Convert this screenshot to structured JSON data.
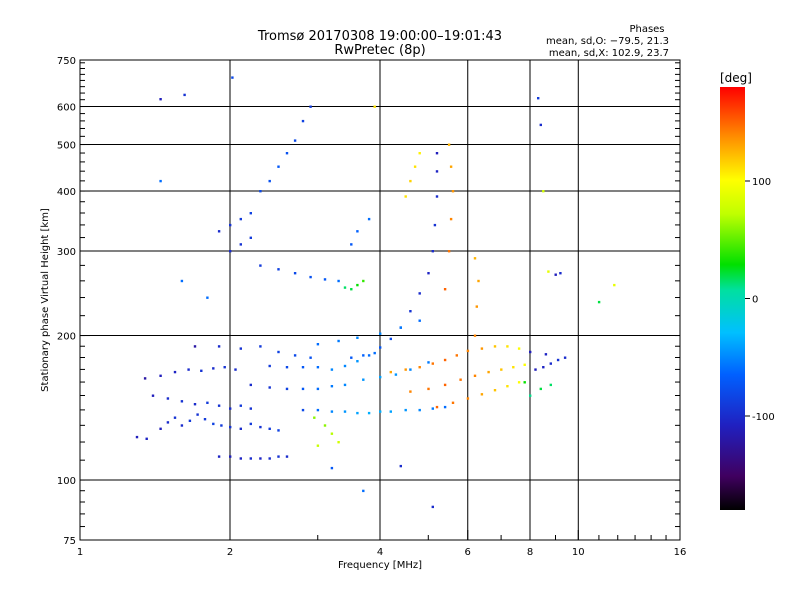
{
  "chart_data": {
    "type": "scatter",
    "title": "Tromsø 20170308 19:00:00–19:01:43",
    "subtitle": "RwPretec (8p)",
    "xlabel": "Frequency [MHz]",
    "ylabel": "Stationary phase Virtual Height [km]",
    "x_scale": "log",
    "y_scale": "log",
    "xlim": [
      1,
      16
    ],
    "ylim": [
      75,
      750
    ],
    "x_ticks": [
      1,
      2,
      4,
      6,
      8,
      10,
      16
    ],
    "y_ticks": [
      75,
      100,
      200,
      300,
      400,
      500,
      600,
      750
    ],
    "x_grid": [
      2,
      4,
      6,
      8,
      10
    ],
    "y_grid": [
      100,
      200,
      300,
      400,
      500,
      600
    ],
    "grid": true,
    "stats": {
      "heading": "Phases",
      "line_o": "mean, sd,O: −79.5, 21.3",
      "line_x": "mean, sd,X: 102.9, 23.7"
    },
    "colorbar": {
      "unit": "[deg]",
      "range": [
        -180,
        180
      ],
      "ticks": [
        100,
        0,
        -100
      ],
      "colormap": "rainbow"
    },
    "series": [
      {
        "values": [
          [
            1.3,
            123,
            -110
          ],
          [
            1.36,
            122,
            -105
          ],
          [
            1.45,
            128,
            -110
          ],
          [
            1.5,
            132,
            -100
          ],
          [
            1.55,
            135,
            -95
          ],
          [
            1.6,
            130,
            -100
          ],
          [
            1.66,
            133,
            -90
          ],
          [
            1.72,
            137,
            -95
          ],
          [
            1.78,
            134,
            -90
          ],
          [
            1.85,
            131,
            -85
          ],
          [
            1.92,
            130,
            -90
          ],
          [
            2.0,
            129,
            -95
          ],
          [
            2.1,
            128,
            -100
          ],
          [
            2.2,
            131,
            -90
          ],
          [
            2.3,
            129,
            -95
          ],
          [
            2.4,
            128,
            -90
          ],
          [
            2.5,
            127,
            -85
          ],
          [
            1.4,
            150,
            -110
          ],
          [
            1.5,
            148,
            -100
          ],
          [
            1.6,
            146,
            -95
          ],
          [
            1.7,
            144,
            -100
          ],
          [
            1.8,
            145,
            -90
          ],
          [
            1.9,
            143,
            -95
          ],
          [
            2.0,
            141,
            -100
          ],
          [
            2.1,
            143,
            -90
          ],
          [
            2.2,
            141,
            -95
          ],
          [
            1.35,
            163,
            -120
          ],
          [
            1.45,
            165,
            -110
          ],
          [
            1.55,
            168,
            -105
          ],
          [
            1.65,
            170,
            -100
          ],
          [
            1.75,
            169,
            -95
          ],
          [
            1.85,
            171,
            -100
          ],
          [
            1.95,
            172,
            -95
          ],
          [
            2.05,
            170,
            -100
          ],
          [
            1.9,
            112,
            -105
          ],
          [
            2.0,
            112,
            -110
          ],
          [
            2.1,
            111,
            -105
          ],
          [
            2.2,
            111,
            -100
          ],
          [
            2.3,
            111,
            -105
          ],
          [
            2.4,
            111,
            -100
          ],
          [
            2.5,
            112,
            -95
          ],
          [
            2.6,
            112,
            -100
          ],
          [
            1.7,
            190,
            -120
          ],
          [
            1.9,
            190,
            -100
          ],
          [
            2.1,
            188,
            -95
          ],
          [
            2.3,
            190,
            -90
          ],
          [
            2.5,
            185,
            -85
          ],
          [
            2.7,
            182,
            -80
          ],
          [
            2.9,
            180,
            -75
          ],
          [
            2.4,
            173,
            -90
          ],
          [
            2.6,
            172,
            -80
          ],
          [
            2.8,
            172,
            -70
          ],
          [
            3.0,
            172,
            -60
          ],
          [
            3.2,
            170,
            -50
          ],
          [
            3.4,
            173,
            -50
          ],
          [
            3.6,
            177,
            -45
          ],
          [
            3.8,
            182,
            -60
          ],
          [
            4.0,
            189,
            -70
          ],
          [
            4.2,
            197,
            -80
          ],
          [
            4.4,
            208,
            -90
          ],
          [
            4.6,
            225,
            -95
          ],
          [
            4.8,
            245,
            -100
          ],
          [
            5.0,
            270,
            -105
          ],
          [
            5.1,
            300,
            -100
          ],
          [
            5.15,
            340,
            -95
          ],
          [
            5.2,
            390,
            -100
          ],
          [
            5.2,
            440,
            -105
          ],
          [
            5.2,
            480,
            -110
          ],
          [
            2.2,
            158,
            -100
          ],
          [
            2.4,
            156,
            -95
          ],
          [
            2.6,
            155,
            -85
          ],
          [
            2.8,
            155,
            -70
          ],
          [
            3.0,
            155,
            -60
          ],
          [
            3.2,
            157,
            -55
          ],
          [
            3.4,
            158,
            -50
          ],
          [
            3.7,
            162,
            -45
          ],
          [
            4.0,
            164,
            -40
          ],
          [
            4.3,
            166,
            -45
          ],
          [
            4.6,
            170,
            -50
          ],
          [
            5.0,
            176,
            -55
          ],
          [
            2.8,
            140,
            -80
          ],
          [
            3.0,
            140,
            -60
          ],
          [
            3.2,
            139,
            -50
          ],
          [
            3.4,
            139,
            -45
          ],
          [
            3.6,
            138,
            -40
          ],
          [
            3.8,
            138,
            -35
          ],
          [
            4.0,
            139,
            -35
          ],
          [
            4.2,
            139,
            -40
          ],
          [
            4.5,
            140,
            -45
          ],
          [
            4.8,
            140,
            -50
          ],
          [
            5.1,
            141,
            -55
          ],
          [
            5.4,
            142,
            -60
          ],
          [
            3.0,
            192,
            -60
          ],
          [
            3.3,
            195,
            -55
          ],
          [
            3.6,
            198,
            -50
          ],
          [
            4.0,
            202,
            -50
          ],
          [
            4.4,
            208,
            -55
          ],
          [
            4.8,
            215,
            -60
          ],
          [
            3.5,
            180,
            -70
          ],
          [
            3.7,
            182,
            -65
          ],
          [
            3.9,
            184,
            -60
          ],
          [
            4.2,
            168,
            130
          ],
          [
            4.5,
            170,
            135
          ],
          [
            4.8,
            172,
            140
          ],
          [
            5.1,
            175,
            145
          ],
          [
            5.4,
            178,
            150
          ],
          [
            5.7,
            182,
            145
          ],
          [
            6.0,
            186,
            140
          ],
          [
            6.4,
            188,
            135
          ],
          [
            6.8,
            190,
            120
          ],
          [
            7.2,
            190,
            110
          ],
          [
            7.6,
            188,
            100
          ],
          [
            4.6,
            153,
            140
          ],
          [
            5.0,
            155,
            145
          ],
          [
            5.4,
            158,
            150
          ],
          [
            5.8,
            162,
            145
          ],
          [
            6.2,
            165,
            140
          ],
          [
            6.6,
            168,
            130
          ],
          [
            7.0,
            170,
            120
          ],
          [
            7.4,
            172,
            110
          ],
          [
            7.8,
            174,
            100
          ],
          [
            5.2,
            142,
            150
          ],
          [
            5.6,
            145,
            145
          ],
          [
            6.0,
            148,
            140
          ],
          [
            6.4,
            151,
            130
          ],
          [
            6.8,
            154,
            120
          ],
          [
            7.2,
            157,
            110
          ],
          [
            7.6,
            160,
            100
          ],
          [
            5.4,
            250,
            150
          ],
          [
            5.5,
            300,
            145
          ],
          [
            5.55,
            350,
            140
          ],
          [
            5.6,
            400,
            135
          ],
          [
            5.55,
            450,
            130
          ],
          [
            5.5,
            500,
            125
          ],
          [
            6.2,
            200,
            140
          ],
          [
            6.25,
            230,
            135
          ],
          [
            6.3,
            260,
            130
          ],
          [
            6.2,
            290,
            125
          ],
          [
            3.1,
            130,
            60
          ],
          [
            3.2,
            125,
            70
          ],
          [
            3.3,
            120,
            80
          ],
          [
            3.0,
            118,
            75
          ],
          [
            2.95,
            135,
            60
          ],
          [
            4.5,
            390,
            110
          ],
          [
            4.6,
            420,
            115
          ],
          [
            4.7,
            450,
            110
          ],
          [
            4.8,
            480,
            105
          ],
          [
            3.5,
            250,
            20
          ],
          [
            3.6,
            255,
            30
          ],
          [
            3.7,
            260,
            40
          ],
          [
            3.4,
            252,
            15
          ],
          [
            8.2,
            170,
            -110
          ],
          [
            8.5,
            172,
            -105
          ],
          [
            8.8,
            175,
            -100
          ],
          [
            9.1,
            178,
            -95
          ],
          [
            9.4,
            180,
            -100
          ],
          [
            8.0,
            185,
            -110
          ],
          [
            8.6,
            183,
            -105
          ],
          [
            8.0,
            150,
            10
          ],
          [
            8.4,
            155,
            20
          ],
          [
            8.8,
            158,
            15
          ],
          [
            7.8,
            160,
            30
          ],
          [
            9.2,
            270,
            -100
          ],
          [
            9.0,
            268,
            -110
          ],
          [
            8.7,
            272,
            90
          ],
          [
            11.0,
            235,
            20
          ],
          [
            11.8,
            255,
            90
          ],
          [
            1.9,
            330,
            -100
          ],
          [
            2.0,
            340,
            -95
          ],
          [
            2.1,
            350,
            -90
          ],
          [
            2.2,
            360,
            -85
          ],
          [
            2.0,
            300,
            -100
          ],
          [
            2.1,
            310,
            -95
          ],
          [
            2.2,
            320,
            -90
          ],
          [
            2.3,
            400,
            -80
          ],
          [
            2.4,
            420,
            -75
          ],
          [
            2.5,
            450,
            -70
          ],
          [
            2.6,
            480,
            -75
          ],
          [
            2.7,
            510,
            -80
          ],
          [
            2.8,
            560,
            -85
          ],
          [
            2.9,
            600,
            -90
          ],
          [
            2.3,
            280,
            -90
          ],
          [
            2.5,
            275,
            -85
          ],
          [
            2.7,
            270,
            -80
          ],
          [
            2.9,
            265,
            -75
          ],
          [
            3.1,
            262,
            -70
          ],
          [
            3.3,
            260,
            -60
          ],
          [
            3.5,
            310,
            -70
          ],
          [
            3.6,
            330,
            -65
          ],
          [
            3.8,
            350,
            -60
          ],
          [
            1.45,
            622,
            -110
          ],
          [
            1.62,
            635,
            -95
          ],
          [
            2.02,
            690,
            -80
          ],
          [
            8.3,
            625,
            -90
          ],
          [
            8.4,
            550,
            -100
          ],
          [
            1.45,
            420,
            -60
          ],
          [
            1.6,
            260,
            -60
          ],
          [
            1.8,
            240,
            -60
          ],
          [
            5.1,
            88,
            -100
          ],
          [
            3.2,
            106,
            -70
          ],
          [
            3.7,
            95,
            -60
          ],
          [
            4.4,
            107,
            -100
          ],
          [
            8.5,
            400,
            80
          ],
          [
            3.9,
            600,
            110
          ]
        ]
      }
    ]
  }
}
